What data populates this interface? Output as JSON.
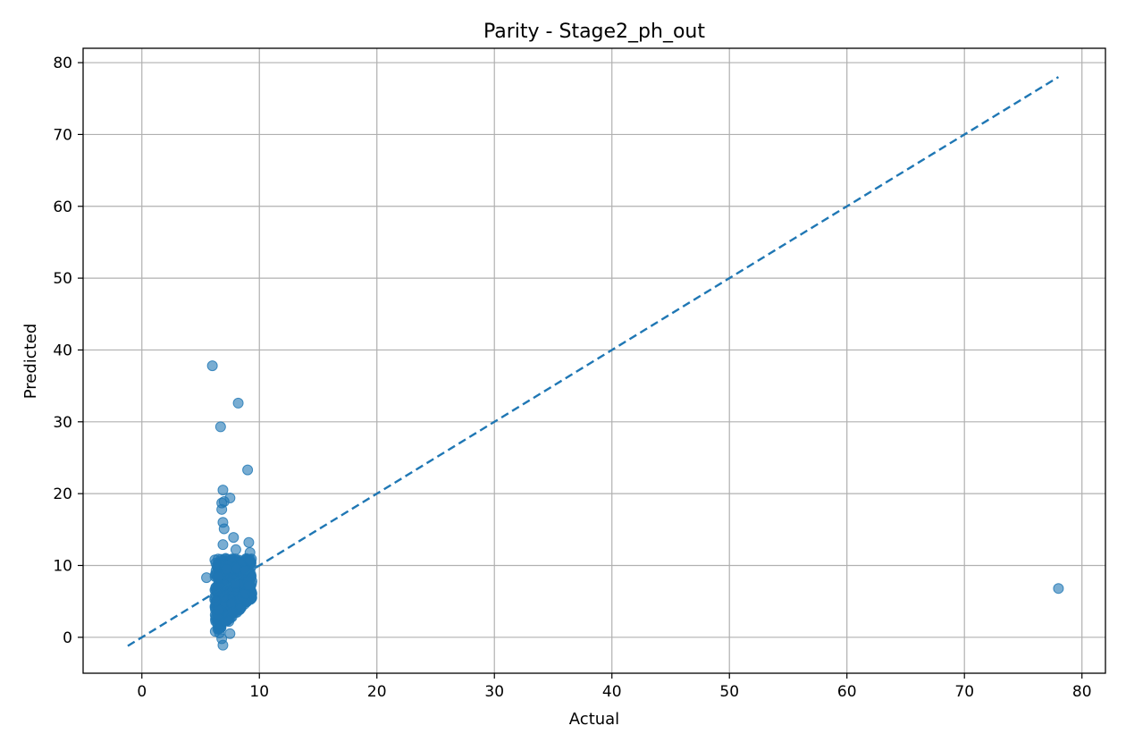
{
  "chart_data": {
    "type": "scatter",
    "title": "Parity - Stage2_ph_out",
    "xlabel": "Actual",
    "ylabel": "Predicted",
    "xlim": [
      -5,
      82
    ],
    "ylim": [
      -5,
      82
    ],
    "xticks": [
      0,
      10,
      20,
      30,
      40,
      50,
      60,
      70,
      80
    ],
    "yticks": [
      0,
      10,
      20,
      30,
      40,
      50,
      60,
      70,
      80
    ],
    "grid": true,
    "point_color": "#1f77b4",
    "point_alpha": 0.6,
    "reference_line": {
      "style": "dashed",
      "color": "#1f77b4",
      "from": [
        -1.2,
        -1.2
      ],
      "to": [
        78,
        78
      ]
    },
    "points": [
      [
        6.0,
        37.8
      ],
      [
        8.2,
        32.6
      ],
      [
        6.7,
        29.3
      ],
      [
        9.0,
        23.3
      ],
      [
        6.9,
        20.5
      ],
      [
        7.5,
        19.4
      ],
      [
        6.8,
        18.7
      ],
      [
        7.0,
        18.9
      ],
      [
        6.8,
        17.8
      ],
      [
        6.9,
        16.0
      ],
      [
        7.0,
        15.1
      ],
      [
        7.8,
        13.9
      ],
      [
        9.1,
        13.2
      ],
      [
        6.9,
        12.9
      ],
      [
        8.0,
        12.2
      ],
      [
        9.2,
        11.8
      ],
      [
        5.5,
        8.3
      ],
      [
        78.0,
        6.8
      ],
      [
        6.6,
        0.6
      ],
      [
        7.5,
        0.5
      ],
      [
        6.8,
        -0.2
      ],
      [
        6.9,
        -1.1
      ],
      [
        7.7,
        3.5
      ],
      [
        7.4,
        2.2
      ],
      [
        6.5,
        3.8
      ],
      [
        8.8,
        6.1
      ],
      [
        9.1,
        7.2
      ],
      [
        6.4,
        6.5
      ],
      [
        6.3,
        5.0
      ],
      [
        7.2,
        9.5
      ]
    ],
    "cluster": {
      "x_range": [
        6.2,
        9.4
      ],
      "y_range": [
        0.5,
        11.0
      ],
      "count": 450,
      "seed": 7
    }
  }
}
